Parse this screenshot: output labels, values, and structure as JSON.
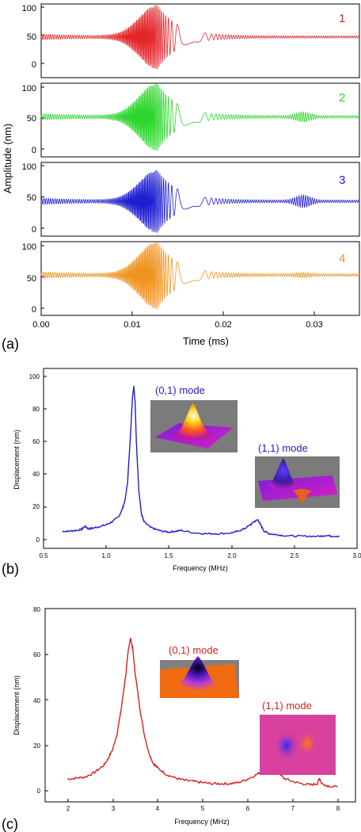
{
  "chart_data": [
    {
      "type": "line",
      "panel_label": "(a)",
      "xlabel": "Time (ms)",
      "ylabel": "Amplitude (nm)",
      "xlim": [
        0,
        0.035
      ],
      "x_ticks": [
        "0.00",
        "0.01",
        "0.02",
        "0.03"
      ],
      "y_ticks": [
        "0",
        "50",
        "100"
      ],
      "ylim": [
        -10,
        110
      ],
      "subplots": [
        {
          "name": "1",
          "color": "#e3262a",
          "baseline": 47,
          "burst_amplitude": 55,
          "burst_center": 0.0128,
          "second_burst_amplitude": 0,
          "tail_amplitude": 2
        },
        {
          "name": "2",
          "color": "#2cd62c",
          "baseline": 52,
          "burst_amplitude": 53,
          "burst_center": 0.0128,
          "second_burst_amplitude": 6,
          "tail_amplitude": 2
        },
        {
          "name": "3",
          "color": "#1f1fd1",
          "baseline": 43,
          "burst_amplitude": 48,
          "burst_center": 0.0128,
          "second_burst_amplitude": 8,
          "tail_amplitude": 2
        },
        {
          "name": "4",
          "color": "#f0921c",
          "baseline": 53,
          "burst_amplitude": 52,
          "burst_center": 0.0128,
          "second_burst_amplitude": 2,
          "tail_amplitude": 2
        }
      ]
    },
    {
      "type": "line",
      "panel_label": "(b)",
      "xlabel": "Frequency (MHz)",
      "ylabel": "Displacement (nm)",
      "xlim": [
        0.5,
        3.0
      ],
      "ylim": [
        -5,
        105
      ],
      "x_ticks": [
        "0.5",
        "1.0",
        "1.5",
        "2.0",
        "2.5",
        "3.0"
      ],
      "y_ticks": [
        "0",
        "20",
        "40",
        "60",
        "80",
        "100"
      ],
      "color": "#1f1fd1",
      "series": [
        {
          "x": [
            0.65,
            0.7,
            0.75,
            0.8,
            0.83,
            0.86,
            0.9,
            0.95,
            1.0,
            1.05,
            1.1,
            1.13,
            1.15,
            1.17,
            1.19,
            1.21,
            1.22,
            1.23,
            1.24,
            1.26,
            1.28,
            1.3,
            1.35,
            1.4,
            1.45,
            1.5,
            1.55,
            1.6,
            1.7,
            1.8,
            1.9,
            2.0,
            2.05,
            2.1,
            2.15,
            2.18,
            2.21,
            2.23,
            2.26,
            2.3,
            2.35,
            2.4,
            2.5,
            2.6,
            2.7,
            2.75,
            2.8,
            2.86
          ],
          "y": [
            5,
            5,
            5.5,
            6,
            8,
            6.5,
            7,
            8,
            9,
            11,
            14,
            19,
            24,
            35,
            60,
            88,
            94,
            85,
            60,
            30,
            16,
            11,
            7.5,
            6,
            5,
            4.5,
            5,
            5.5,
            4,
            3.5,
            3.5,
            4,
            5,
            6.5,
            9,
            11,
            12,
            9,
            5,
            3.5,
            3,
            2.5,
            2,
            2,
            1.8,
            2.5,
            2,
            2
          ]
        }
      ],
      "annotations": [
        {
          "text": "(0,1) mode",
          "color": "#2020cc"
        },
        {
          "text": "(1,1) mode",
          "color": "#2020cc"
        }
      ]
    },
    {
      "type": "line",
      "panel_label": "(c)",
      "xlabel": "Frequency (MHz)",
      "ylabel": "Displacement (nm)",
      "xlim": [
        1.5,
        8.4
      ],
      "ylim": [
        -5,
        80
      ],
      "x_ticks": [
        "2",
        "3",
        "4",
        "5",
        "6",
        "7",
        "8"
      ],
      "y_ticks": [
        "0",
        "20",
        "40",
        "60",
        "80"
      ],
      "color": "#d92020",
      "series": [
        {
          "x": [
            2.0,
            2.2,
            2.4,
            2.6,
            2.8,
            2.9,
            3.0,
            3.1,
            3.2,
            3.3,
            3.35,
            3.4,
            3.45,
            3.5,
            3.6,
            3.7,
            3.8,
            3.9,
            4.0,
            4.2,
            4.4,
            4.6,
            4.8,
            5.0,
            5.2,
            5.4,
            5.6,
            5.8,
            6.0,
            6.2,
            6.35,
            6.5,
            6.6,
            6.7,
            6.8,
            7.0,
            7.2,
            7.4,
            7.55,
            7.6,
            7.65,
            7.8,
            8.0
          ],
          "y": [
            5,
            5.5,
            6,
            8,
            11,
            14,
            18,
            25,
            37,
            52,
            62,
            67,
            62,
            52,
            37,
            25,
            17,
            12,
            10,
            7,
            5.5,
            4.5,
            4,
            3.5,
            3,
            3,
            3,
            3.5,
            5,
            7,
            9,
            11.5,
            11,
            8,
            5.5,
            4,
            3,
            2.5,
            3,
            5.5,
            3,
            2,
            1.5
          ]
        }
      ],
      "annotations": [
        {
          "text": "(0,1) mode",
          "color": "#d92020"
        },
        {
          "text": "(1,1) mode",
          "color": "#d92020"
        }
      ]
    }
  ]
}
